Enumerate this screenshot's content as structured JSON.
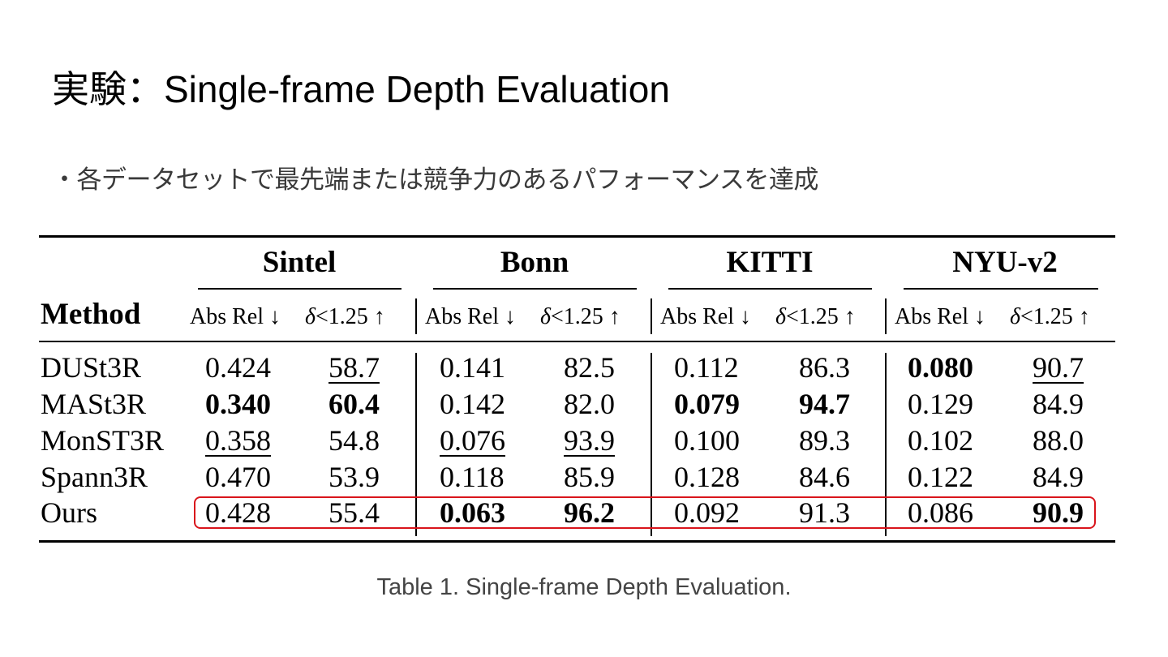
{
  "slide": {
    "title": "実験：Single-frame Depth Evaluation",
    "bullet": "・各データセットで最先端または競争力のあるパフォーマンスを達成",
    "caption": "Table 1. Single-frame Depth Evaluation.",
    "highlight_color": "#d9141b"
  },
  "table": {
    "method_header": "Method",
    "datasets": [
      "Sintel",
      "Bonn",
      "KITTI",
      "NYU-v2"
    ],
    "metric_abs": "Abs Rel",
    "metric_abs_arrow": "↓",
    "metric_delta_symbol": "δ",
    "metric_delta_rest": "<1.25",
    "metric_delta_arrow": "↑",
    "rows": [
      {
        "method": "DUSt3R",
        "values": [
          "0.424",
          "58.7",
          "0.141",
          "82.5",
          "0.112",
          "86.3",
          "0.080",
          "90.7"
        ]
      },
      {
        "method": "MASt3R",
        "values": [
          "0.340",
          "60.4",
          "0.142",
          "82.0",
          "0.079",
          "94.7",
          "0.129",
          "84.9"
        ]
      },
      {
        "method": "MonST3R",
        "values": [
          "0.358",
          "54.8",
          "0.076",
          "93.9",
          "0.100",
          "89.3",
          "0.102",
          "88.0"
        ]
      },
      {
        "method": "Spann3R",
        "values": [
          "0.470",
          "53.9",
          "0.118",
          "85.9",
          "0.128",
          "84.6",
          "0.122",
          "84.9"
        ]
      },
      {
        "method": "Ours",
        "values": [
          "0.428",
          "55.4",
          "0.063",
          "96.2",
          "0.092",
          "91.3",
          "0.086",
          "90.9"
        ],
        "highlighted": true
      }
    ]
  }
}
